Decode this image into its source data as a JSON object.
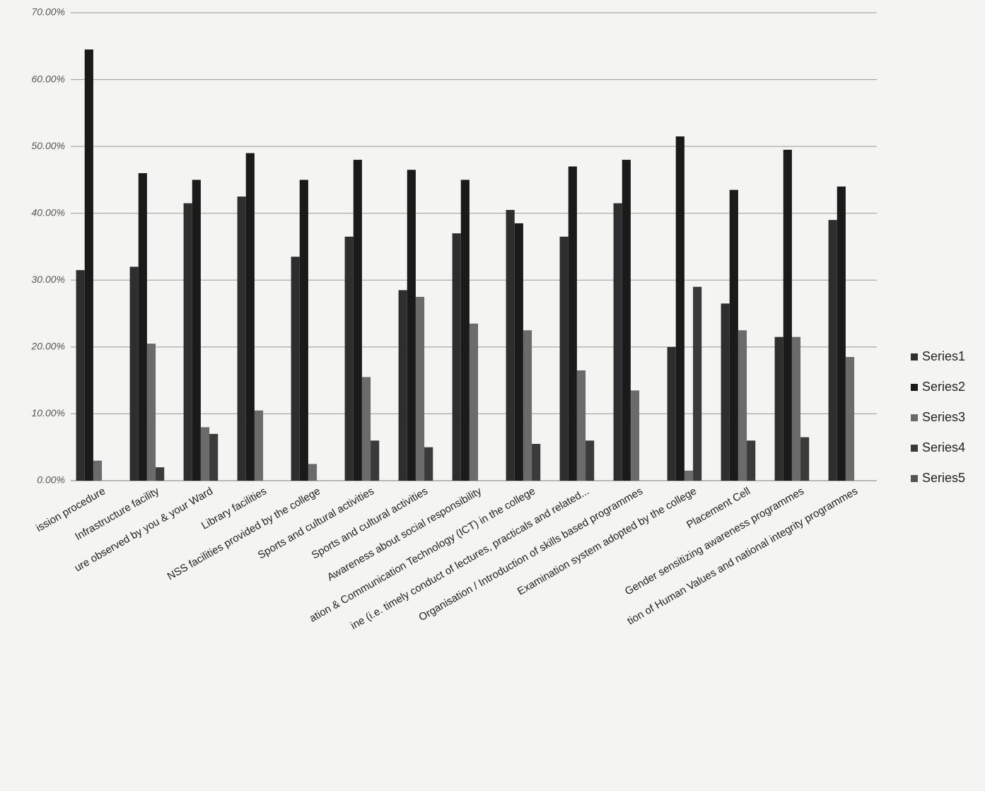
{
  "chart_data": {
    "type": "bar",
    "categories": [
      "ission procedure",
      "Infrastructure facility",
      "ure observed by you & your Ward",
      "Library facilities",
      "NSS facilities provided by the college",
      "Sports and cultural activities",
      "Sports and cultural activities",
      "Awareness about social responsibility",
      "ation & Communication Technology (ICT) in the college",
      "ine (i.e. timely conduct of lectures, practicals and related...",
      "Organisation / Introduction of skills based programmes",
      "Examination system adopted by the college",
      "Placement Cell",
      "Gender sensitizing awareness programmes",
      "tion of Human Values and national integrity programmes"
    ],
    "series": [
      {
        "name": "Series1",
        "color": "#2e2e2e",
        "values": [
          31.5,
          32,
          41.5,
          42.5,
          33.5,
          36.5,
          28.5,
          37,
          40.5,
          36.5,
          41.5,
          20,
          26.5,
          21.5,
          39
        ]
      },
      {
        "name": "Series2",
        "color": "#1a1a1a",
        "values": [
          64.5,
          46,
          45,
          49,
          45,
          48,
          46.5,
          45,
          38.5,
          47,
          48,
          51.5,
          43.5,
          49.5,
          44
        ]
      },
      {
        "name": "Series3",
        "color": "#6b6b6b",
        "values": [
          3,
          20.5,
          8,
          10.5,
          2.5,
          15.5,
          27.5,
          23.5,
          22.5,
          16.5,
          13.5,
          1.5,
          22.5,
          21.5,
          18.5
        ]
      },
      {
        "name": "Series4",
        "color": "#3a3a3a",
        "values": [
          0,
          2,
          7,
          0,
          0,
          6,
          5,
          0,
          5.5,
          6,
          0,
          29,
          6,
          6.5,
          0
        ]
      },
      {
        "name": "Series5",
        "color": "#555555",
        "values": [
          0,
          0,
          0,
          0,
          0,
          0,
          0,
          0,
          0,
          0,
          0,
          0,
          0,
          0,
          0
        ]
      }
    ],
    "ylim": [
      0,
      70
    ],
    "yticks": [
      {
        "value": 0,
        "label": "0.00%"
      },
      {
        "value": 10,
        "label": "10.00%"
      },
      {
        "value": 20,
        "label": "20.00%"
      },
      {
        "value": 30,
        "label": "30.00%"
      },
      {
        "value": 40,
        "label": "40.00%"
      },
      {
        "value": 50,
        "label": "50.00%"
      },
      {
        "value": 60,
        "label": "60.00%"
      },
      {
        "value": 70,
        "label": "70.00%"
      }
    ],
    "grid": true
  }
}
